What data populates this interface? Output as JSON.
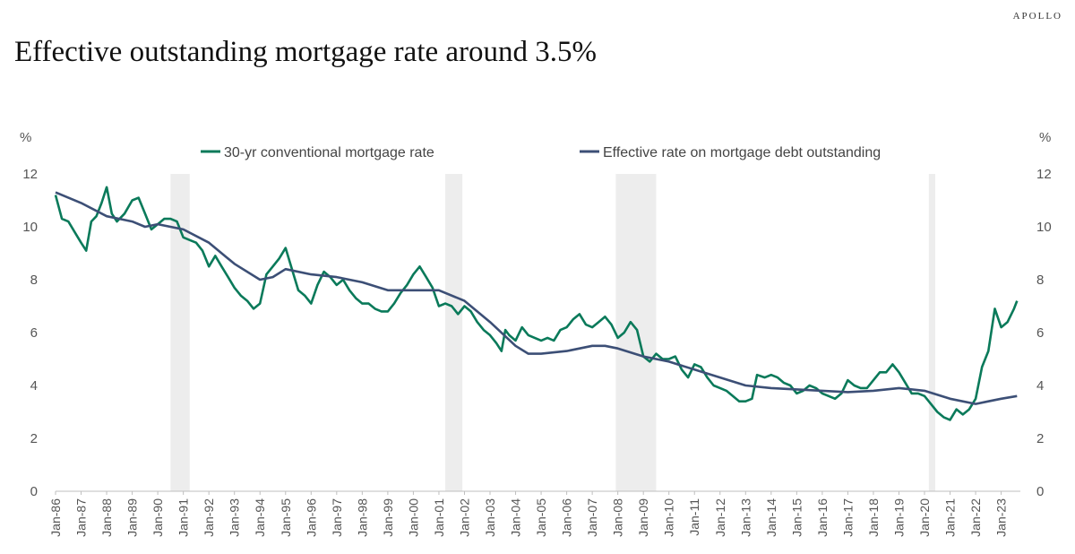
{
  "brand": "APOLLO",
  "title": "Effective outstanding mortgage rate around 3.5%",
  "chart_data": {
    "type": "line",
    "title": "Effective outstanding mortgage rate around 3.5%",
    "ylabel_left": "%",
    "ylabel_right": "%",
    "ylim": [
      0,
      12
    ],
    "yticks": [
      0,
      2,
      4,
      6,
      8,
      10,
      12
    ],
    "xlim": [
      1986.0,
      2023.75
    ],
    "xtick_labels": [
      "Jan-86",
      "Jan-87",
      "Jan-88",
      "Jan-89",
      "Jan-90",
      "Jan-91",
      "Jan-92",
      "Jan-93",
      "Jan-94",
      "Jan-95",
      "Jan-96",
      "Jan-97",
      "Jan-98",
      "Jan-99",
      "Jan-00",
      "Jan-01",
      "Jan-02",
      "Jan-03",
      "Jan-04",
      "Jan-05",
      "Jan-06",
      "Jan-07",
      "Jan-08",
      "Jan-09",
      "Jan-10",
      "Jan-11",
      "Jan-12",
      "Jan-13",
      "Jan-14",
      "Jan-15",
      "Jan-16",
      "Jan-17",
      "Jan-18",
      "Jan-19",
      "Jan-20",
      "Jan-21",
      "Jan-22",
      "Jan-23"
    ],
    "recessions": [
      [
        1990.5,
        1991.25
      ],
      [
        2001.25,
        2001.92
      ],
      [
        2007.92,
        2009.5
      ],
      [
        2020.17,
        2020.42
      ]
    ],
    "series": [
      {
        "name": "30-yr conventional mortgage rate",
        "color": "#0a7a5a",
        "points": [
          [
            1986.0,
            11.2
          ],
          [
            1986.25,
            10.3
          ],
          [
            1986.5,
            10.2
          ],
          [
            1986.75,
            9.8
          ],
          [
            1987.0,
            9.4
          ],
          [
            1987.2,
            9.1
          ],
          [
            1987.4,
            10.2
          ],
          [
            1987.6,
            10.4
          ],
          [
            1987.8,
            10.9
          ],
          [
            1988.0,
            11.5
          ],
          [
            1988.2,
            10.5
          ],
          [
            1988.4,
            10.2
          ],
          [
            1988.7,
            10.5
          ],
          [
            1989.0,
            11.0
          ],
          [
            1989.25,
            11.1
          ],
          [
            1989.5,
            10.5
          ],
          [
            1989.75,
            9.9
          ],
          [
            1990.0,
            10.1
          ],
          [
            1990.25,
            10.3
          ],
          [
            1990.5,
            10.3
          ],
          [
            1990.75,
            10.2
          ],
          [
            1991.0,
            9.6
          ],
          [
            1991.25,
            9.5
          ],
          [
            1991.5,
            9.4
          ],
          [
            1991.75,
            9.1
          ],
          [
            1992.0,
            8.5
          ],
          [
            1992.25,
            8.9
          ],
          [
            1992.5,
            8.5
          ],
          [
            1992.75,
            8.1
          ],
          [
            1993.0,
            7.7
          ],
          [
            1993.25,
            7.4
          ],
          [
            1993.5,
            7.2
          ],
          [
            1993.75,
            6.9
          ],
          [
            1994.0,
            7.1
          ],
          [
            1994.25,
            8.2
          ],
          [
            1994.5,
            8.5
          ],
          [
            1994.75,
            8.8
          ],
          [
            1995.0,
            9.2
          ],
          [
            1995.25,
            8.4
          ],
          [
            1995.5,
            7.6
          ],
          [
            1995.75,
            7.4
          ],
          [
            1996.0,
            7.1
          ],
          [
            1996.25,
            7.8
          ],
          [
            1996.5,
            8.3
          ],
          [
            1996.75,
            8.1
          ],
          [
            1997.0,
            7.8
          ],
          [
            1997.25,
            8.0
          ],
          [
            1997.5,
            7.6
          ],
          [
            1997.75,
            7.3
          ],
          [
            1998.0,
            7.1
          ],
          [
            1998.25,
            7.1
          ],
          [
            1998.5,
            6.9
          ],
          [
            1998.75,
            6.8
          ],
          [
            1999.0,
            6.8
          ],
          [
            1999.25,
            7.1
          ],
          [
            1999.5,
            7.5
          ],
          [
            1999.75,
            7.8
          ],
          [
            2000.0,
            8.2
          ],
          [
            2000.25,
            8.5
          ],
          [
            2000.5,
            8.1
          ],
          [
            2000.75,
            7.7
          ],
          [
            2001.0,
            7.0
          ],
          [
            2001.25,
            7.1
          ],
          [
            2001.5,
            7.0
          ],
          [
            2001.75,
            6.7
          ],
          [
            2002.0,
            7.0
          ],
          [
            2002.25,
            6.8
          ],
          [
            2002.5,
            6.4
          ],
          [
            2002.75,
            6.1
          ],
          [
            2003.0,
            5.9
          ],
          [
            2003.25,
            5.6
          ],
          [
            2003.45,
            5.3
          ],
          [
            2003.6,
            6.1
          ],
          [
            2003.75,
            5.9
          ],
          [
            2004.0,
            5.7
          ],
          [
            2004.25,
            6.2
          ],
          [
            2004.5,
            5.9
          ],
          [
            2004.75,
            5.8
          ],
          [
            2005.0,
            5.7
          ],
          [
            2005.25,
            5.8
          ],
          [
            2005.5,
            5.7
          ],
          [
            2005.75,
            6.1
          ],
          [
            2006.0,
            6.2
          ],
          [
            2006.25,
            6.5
          ],
          [
            2006.5,
            6.7
          ],
          [
            2006.75,
            6.3
          ],
          [
            2007.0,
            6.2
          ],
          [
            2007.25,
            6.4
          ],
          [
            2007.5,
            6.6
          ],
          [
            2007.75,
            6.3
          ],
          [
            2008.0,
            5.8
          ],
          [
            2008.25,
            6.0
          ],
          [
            2008.5,
            6.4
          ],
          [
            2008.75,
            6.1
          ],
          [
            2009.0,
            5.1
          ],
          [
            2009.25,
            4.9
          ],
          [
            2009.5,
            5.2
          ],
          [
            2009.75,
            5.0
          ],
          [
            2010.0,
            5.0
          ],
          [
            2010.25,
            5.1
          ],
          [
            2010.5,
            4.6
          ],
          [
            2010.75,
            4.3
          ],
          [
            2011.0,
            4.8
          ],
          [
            2011.25,
            4.7
          ],
          [
            2011.5,
            4.3
          ],
          [
            2011.75,
            4.0
          ],
          [
            2012.0,
            3.9
          ],
          [
            2012.25,
            3.8
          ],
          [
            2012.5,
            3.6
          ],
          [
            2012.75,
            3.4
          ],
          [
            2013.0,
            3.4
          ],
          [
            2013.25,
            3.5
          ],
          [
            2013.45,
            4.4
          ],
          [
            2013.75,
            4.3
          ],
          [
            2014.0,
            4.4
          ],
          [
            2014.25,
            4.3
          ],
          [
            2014.5,
            4.1
          ],
          [
            2014.75,
            4.0
          ],
          [
            2015.0,
            3.7
          ],
          [
            2015.25,
            3.8
          ],
          [
            2015.5,
            4.0
          ],
          [
            2015.75,
            3.9
          ],
          [
            2016.0,
            3.7
          ],
          [
            2016.25,
            3.6
          ],
          [
            2016.5,
            3.5
          ],
          [
            2016.75,
            3.7
          ],
          [
            2017.0,
            4.2
          ],
          [
            2017.25,
            4.0
          ],
          [
            2017.5,
            3.9
          ],
          [
            2017.75,
            3.9
          ],
          [
            2018.0,
            4.2
          ],
          [
            2018.25,
            4.5
          ],
          [
            2018.5,
            4.5
          ],
          [
            2018.75,
            4.8
          ],
          [
            2019.0,
            4.5
          ],
          [
            2019.25,
            4.1
          ],
          [
            2019.5,
            3.7
          ],
          [
            2019.75,
            3.7
          ],
          [
            2020.0,
            3.6
          ],
          [
            2020.25,
            3.3
          ],
          [
            2020.5,
            3.0
          ],
          [
            2020.75,
            2.8
          ],
          [
            2021.0,
            2.7
          ],
          [
            2021.25,
            3.1
          ],
          [
            2021.5,
            2.9
          ],
          [
            2021.75,
            3.1
          ],
          [
            2022.0,
            3.5
          ],
          [
            2022.25,
            4.7
          ],
          [
            2022.5,
            5.3
          ],
          [
            2022.75,
            6.9
          ],
          [
            2023.0,
            6.2
          ],
          [
            2023.25,
            6.4
          ],
          [
            2023.5,
            6.9
          ],
          [
            2023.62,
            7.2
          ]
        ]
      },
      {
        "name": "Effective rate on mortgage debt outstanding",
        "color": "#3c4f76",
        "points": [
          [
            1986.0,
            11.3
          ],
          [
            1987.0,
            10.9
          ],
          [
            1988.0,
            10.4
          ],
          [
            1989.0,
            10.2
          ],
          [
            1989.5,
            10.0
          ],
          [
            1990.0,
            10.1
          ],
          [
            1991.0,
            9.9
          ],
          [
            1992.0,
            9.4
          ],
          [
            1993.0,
            8.6
          ],
          [
            1994.0,
            8.0
          ],
          [
            1994.5,
            8.1
          ],
          [
            1995.0,
            8.4
          ],
          [
            1996.0,
            8.2
          ],
          [
            1997.0,
            8.1
          ],
          [
            1998.0,
            7.9
          ],
          [
            1999.0,
            7.6
          ],
          [
            2000.0,
            7.6
          ],
          [
            2001.0,
            7.6
          ],
          [
            2002.0,
            7.2
          ],
          [
            2003.0,
            6.4
          ],
          [
            2004.0,
            5.5
          ],
          [
            2004.5,
            5.2
          ],
          [
            2005.0,
            5.2
          ],
          [
            2006.0,
            5.3
          ],
          [
            2007.0,
            5.5
          ],
          [
            2007.5,
            5.5
          ],
          [
            2008.0,
            5.4
          ],
          [
            2009.0,
            5.1
          ],
          [
            2010.0,
            4.9
          ],
          [
            2011.0,
            4.6
          ],
          [
            2012.0,
            4.3
          ],
          [
            2013.0,
            4.0
          ],
          [
            2014.0,
            3.9
          ],
          [
            2015.0,
            3.85
          ],
          [
            2016.0,
            3.8
          ],
          [
            2017.0,
            3.75
          ],
          [
            2018.0,
            3.8
          ],
          [
            2019.0,
            3.9
          ],
          [
            2020.0,
            3.8
          ],
          [
            2021.0,
            3.5
          ],
          [
            2022.0,
            3.3
          ],
          [
            2022.5,
            3.4
          ],
          [
            2023.0,
            3.5
          ],
          [
            2023.62,
            3.6
          ]
        ]
      }
    ],
    "legend": [
      "30-yr conventional mortgage rate",
      "Effective rate on mortgage debt outstanding"
    ]
  }
}
